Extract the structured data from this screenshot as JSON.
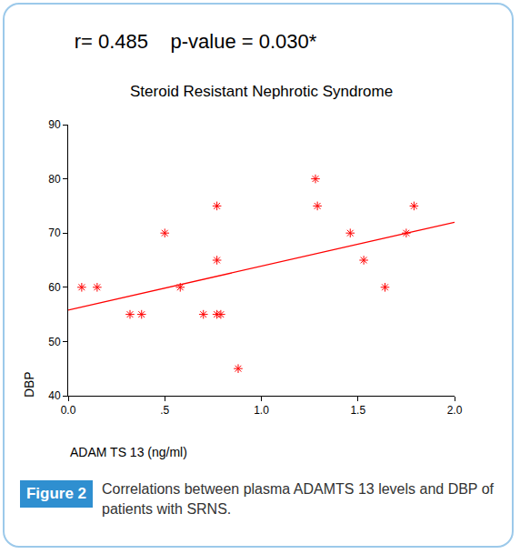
{
  "chart_data": {
    "type": "scatter",
    "title": "r= 0.485    p-value = 0.030*",
    "subtitle": "Steroid Resistant Nephrotic Syndrome",
    "x_label": "ADAM TS 13 (ng/ml)",
    "y_label": "DBP",
    "x": [
      0.07,
      0.15,
      0.32,
      0.38,
      0.5,
      0.58,
      0.7,
      0.77,
      0.77,
      0.77,
      0.79,
      0.88,
      1.28,
      1.29,
      1.46,
      1.53,
      1.64,
      1.75,
      1.79
    ],
    "values": [
      60,
      60,
      55,
      55,
      70,
      60,
      55,
      75,
      65,
      55,
      55,
      45,
      80,
      75,
      70,
      65,
      60,
      70,
      75
    ],
    "color": "#ff0000",
    "marker": "asterisk",
    "trend_line": {
      "x": [
        0,
        2
      ],
      "values": [
        55.8,
        72
      ],
      "color": "#ff0000",
      "line_style": "solid"
    },
    "xlim": [
      0,
      2
    ],
    "xticks": [
      {
        "value": 0,
        "label": "0.0"
      },
      {
        "value": 0.5,
        "label": ".5"
      },
      {
        "value": 1,
        "label": "1.0"
      },
      {
        "value": 1.5,
        "label": "1.5"
      },
      {
        "value": 2,
        "label": "2.0"
      }
    ],
    "ylim": [
      40,
      90
    ],
    "yticks": [
      40,
      50,
      60,
      70,
      80,
      90
    ],
    "grid": false
  },
  "figure": {
    "label": "Figure 2",
    "caption": "Correlations between plasma ADAMTS 13 levels and DBP of patients with SRNS."
  }
}
